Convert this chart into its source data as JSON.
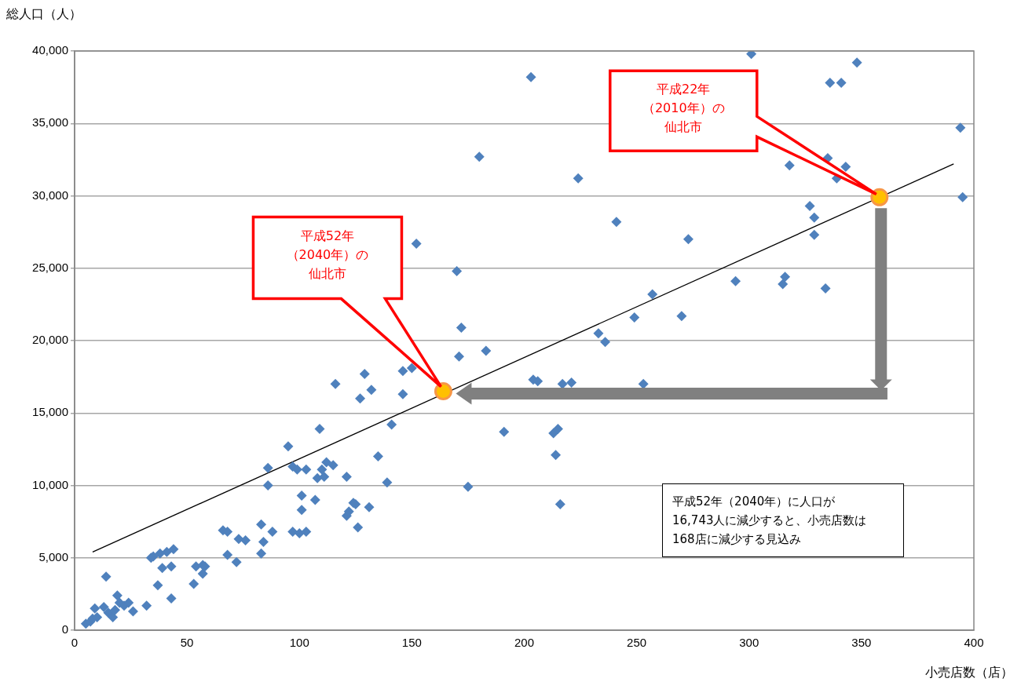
{
  "chart_data": {
    "type": "scatter",
    "xlabel": "小売店数（店）",
    "ylabel": "総人口（人）",
    "xlim": [
      0,
      400
    ],
    "xticks": [
      0,
      50,
      100,
      150,
      200,
      250,
      300,
      350,
      400
    ],
    "ylim": [
      0,
      40000
    ],
    "yticks": [
      0,
      {
        "value": 5000,
        "label": "5,000"
      },
      {
        "value": 10000,
        "label": "10,000"
      },
      {
        "value": 15000,
        "label": "15,000"
      },
      {
        "value": 20000,
        "label": "20,000"
      },
      {
        "value": 25000,
        "label": "25,000"
      },
      {
        "value": 30000,
        "label": "30,000"
      },
      {
        "value": 35000,
        "label": "35,000"
      },
      {
        "value": 40000,
        "label": "40,000"
      }
    ],
    "grid": "y",
    "legend": false,
    "marker": "diamond",
    "series": [
      {
        "type": "line",
        "color": "#000000",
        "marker": "none",
        "x": [
          8,
          391
        ],
        "values": [
          5400,
          32200
        ]
      },
      {
        "type": "scatter",
        "color": "#4f81bd",
        "x": [
          5,
          7,
          8,
          9,
          10,
          13,
          14,
          15,
          17,
          18,
          19,
          20,
          22,
          24,
          26,
          32,
          34,
          35,
          37,
          38,
          39,
          41,
          43,
          43,
          44,
          53,
          54,
          57,
          57,
          58,
          66,
          68,
          68,
          72,
          73,
          76,
          83,
          83,
          84,
          86,
          86,
          88,
          95,
          97,
          97,
          99,
          100,
          101,
          101,
          103,
          103,
          107,
          108,
          109,
          110,
          111,
          112,
          115,
          116,
          121,
          121,
          122,
          124,
          125,
          126,
          127,
          129,
          131,
          132,
          135,
          139,
          141,
          146,
          146,
          150,
          152,
          170,
          171,
          172,
          175,
          180,
          183,
          191,
          203,
          204,
          206,
          213,
          214,
          215,
          216,
          217,
          221,
          224,
          233,
          236,
          241,
          249,
          253,
          257,
          270,
          273,
          294,
          301,
          315,
          316,
          318,
          327,
          329,
          329,
          334,
          335,
          336,
          339,
          341,
          343,
          348,
          394,
          395
        ],
        "values": [
          450,
          600,
          800,
          1500,
          900,
          1600,
          3700,
          1200,
          900,
          1400,
          2400,
          1900,
          1700,
          1900,
          1300,
          1700,
          5000,
          5100,
          3100,
          5300,
          4300,
          5400,
          4400,
          2200,
          5600,
          3200,
          4400,
          3900,
          4500,
          4400,
          6900,
          6800,
          5200,
          4700,
          6300,
          6200,
          7300,
          5300,
          6100,
          11200,
          10000,
          6800,
          12700,
          11300,
          6800,
          11100,
          6700,
          9300,
          8300,
          11100,
          6800,
          9000,
          10500,
          13900,
          11100,
          10600,
          11600,
          11400,
          17000,
          10600,
          7900,
          8200,
          8800,
          8700,
          7100,
          16000,
          17700,
          8500,
          16600,
          12000,
          10200,
          14200,
          17900,
          16300,
          18100,
          26700,
          24800,
          18900,
          20900,
          9900,
          32700,
          19300,
          13700,
          38200,
          17300,
          17200,
          13600,
          12100,
          13900,
          8700,
          17000,
          17100,
          31200,
          20500,
          19900,
          28200,
          21600,
          17000,
          23200,
          21700,
          27000,
          24100,
          39800,
          23900,
          24400,
          32100,
          29300,
          28500,
          27300,
          23600,
          32600,
          37800,
          31200,
          37800,
          32000,
          39200,
          34700,
          29900
        ]
      },
      {
        "type": "scatter",
        "color": "#ffc000",
        "marker": "circle",
        "x": [
          358,
          164
        ],
        "values": [
          29900,
          16500
        ]
      }
    ],
    "annotations": [
      "平成22年（2010年）の仙北市",
      "平成52年（2040年）の仙北市",
      "平成52年（2040年）に人口が16,743人に減少すると、小売店数は168店に減少する見込み"
    ]
  }
}
